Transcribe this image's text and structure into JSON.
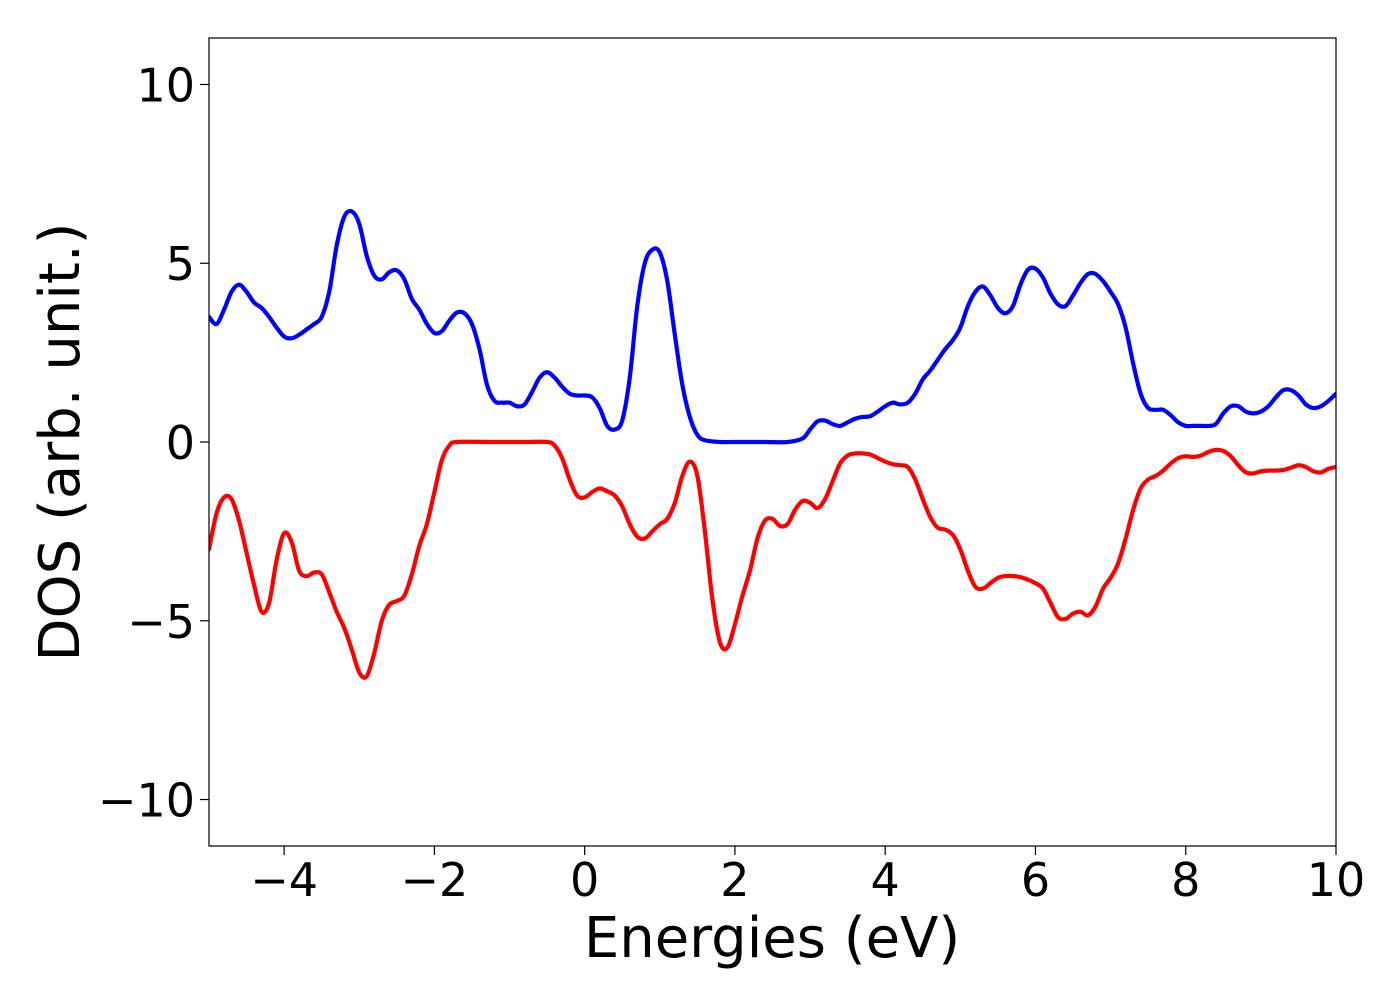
{
  "chart_data": {
    "type": "line",
    "title": "",
    "xlabel": "Energies (eV)",
    "ylabel": "DOS (arb. unit.)",
    "xlim": [
      -5,
      10
    ],
    "ylim": [
      -11.3,
      11.3
    ],
    "xticks": [
      -4,
      -2,
      0,
      2,
      4,
      6,
      8,
      10
    ],
    "xtick_labels": [
      "−4",
      "−2",
      "0",
      "2",
      "4",
      "6",
      "8",
      "10"
    ],
    "yticks": [
      -10,
      -5,
      0,
      5,
      10
    ],
    "ytick_labels": [
      "−10",
      "−5",
      "0",
      "5",
      "10"
    ],
    "grid": false,
    "legend": null,
    "series": [
      {
        "color": "#0000ff",
        "points": [
          [
            -5.0,
            3.5
          ],
          [
            -4.9,
            3.3
          ],
          [
            -4.8,
            3.7
          ],
          [
            -4.7,
            4.2
          ],
          [
            -4.6,
            4.4
          ],
          [
            -4.5,
            4.2
          ],
          [
            -4.4,
            3.9
          ],
          [
            -4.3,
            3.75
          ],
          [
            -4.2,
            3.5
          ],
          [
            -4.1,
            3.2
          ],
          [
            -4.0,
            2.95
          ],
          [
            -3.9,
            2.9
          ],
          [
            -3.8,
            3.0
          ],
          [
            -3.7,
            3.15
          ],
          [
            -3.6,
            3.3
          ],
          [
            -3.5,
            3.5
          ],
          [
            -3.4,
            4.2
          ],
          [
            -3.3,
            5.5
          ],
          [
            -3.2,
            6.3
          ],
          [
            -3.1,
            6.45
          ],
          [
            -3.0,
            6.1
          ],
          [
            -2.9,
            5.2
          ],
          [
            -2.8,
            4.65
          ],
          [
            -2.7,
            4.55
          ],
          [
            -2.6,
            4.75
          ],
          [
            -2.5,
            4.8
          ],
          [
            -2.4,
            4.55
          ],
          [
            -2.3,
            4.0
          ],
          [
            -2.2,
            3.7
          ],
          [
            -2.1,
            3.3
          ],
          [
            -2.0,
            3.05
          ],
          [
            -1.9,
            3.1
          ],
          [
            -1.8,
            3.4
          ],
          [
            -1.7,
            3.62
          ],
          [
            -1.6,
            3.6
          ],
          [
            -1.5,
            3.3
          ],
          [
            -1.4,
            2.6
          ],
          [
            -1.3,
            1.6
          ],
          [
            -1.2,
            1.15
          ],
          [
            -1.1,
            1.1
          ],
          [
            -1.0,
            1.1
          ],
          [
            -0.9,
            1.0
          ],
          [
            -0.8,
            1.05
          ],
          [
            -0.7,
            1.4
          ],
          [
            -0.6,
            1.8
          ],
          [
            -0.5,
            1.95
          ],
          [
            -0.4,
            1.8
          ],
          [
            -0.3,
            1.55
          ],
          [
            -0.2,
            1.35
          ],
          [
            -0.1,
            1.3
          ],
          [
            0.0,
            1.3
          ],
          [
            0.1,
            1.25
          ],
          [
            0.2,
            0.95
          ],
          [
            0.3,
            0.45
          ],
          [
            0.4,
            0.35
          ],
          [
            0.5,
            0.6
          ],
          [
            0.6,
            1.8
          ],
          [
            0.7,
            3.8
          ],
          [
            0.8,
            5.0
          ],
          [
            0.9,
            5.38
          ],
          [
            1.0,
            5.3
          ],
          [
            1.1,
            4.5
          ],
          [
            1.2,
            3.0
          ],
          [
            1.3,
            1.6
          ],
          [
            1.4,
            0.7
          ],
          [
            1.5,
            0.2
          ],
          [
            1.6,
            0.05
          ],
          [
            1.8,
            0.0
          ],
          [
            2.0,
            0.0
          ],
          [
            2.4,
            0.0
          ],
          [
            2.7,
            0.0
          ],
          [
            2.9,
            0.1
          ],
          [
            3.0,
            0.35
          ],
          [
            3.1,
            0.58
          ],
          [
            3.2,
            0.6
          ],
          [
            3.3,
            0.5
          ],
          [
            3.4,
            0.45
          ],
          [
            3.5,
            0.55
          ],
          [
            3.6,
            0.65
          ],
          [
            3.7,
            0.7
          ],
          [
            3.8,
            0.72
          ],
          [
            3.9,
            0.85
          ],
          [
            4.0,
            1.0
          ],
          [
            4.1,
            1.1
          ],
          [
            4.2,
            1.05
          ],
          [
            4.3,
            1.1
          ],
          [
            4.4,
            1.35
          ],
          [
            4.5,
            1.75
          ],
          [
            4.6,
            2.0
          ],
          [
            4.7,
            2.3
          ],
          [
            4.8,
            2.6
          ],
          [
            4.9,
            2.85
          ],
          [
            5.0,
            3.2
          ],
          [
            5.1,
            3.8
          ],
          [
            5.2,
            4.2
          ],
          [
            5.3,
            4.35
          ],
          [
            5.4,
            4.1
          ],
          [
            5.5,
            3.75
          ],
          [
            5.6,
            3.6
          ],
          [
            5.7,
            3.8
          ],
          [
            5.8,
            4.4
          ],
          [
            5.9,
            4.82
          ],
          [
            6.0,
            4.85
          ],
          [
            6.1,
            4.6
          ],
          [
            6.2,
            4.15
          ],
          [
            6.3,
            3.85
          ],
          [
            6.4,
            3.8
          ],
          [
            6.5,
            4.1
          ],
          [
            6.6,
            4.45
          ],
          [
            6.7,
            4.7
          ],
          [
            6.8,
            4.7
          ],
          [
            6.9,
            4.5
          ],
          [
            7.0,
            4.2
          ],
          [
            7.1,
            3.85
          ],
          [
            7.2,
            3.2
          ],
          [
            7.3,
            2.2
          ],
          [
            7.4,
            1.35
          ],
          [
            7.5,
            0.95
          ],
          [
            7.6,
            0.9
          ],
          [
            7.7,
            0.9
          ],
          [
            7.8,
            0.75
          ],
          [
            7.9,
            0.55
          ],
          [
            8.0,
            0.45
          ],
          [
            8.1,
            0.45
          ],
          [
            8.2,
            0.45
          ],
          [
            8.3,
            0.45
          ],
          [
            8.4,
            0.5
          ],
          [
            8.5,
            0.8
          ],
          [
            8.6,
            1.0
          ],
          [
            8.7,
            1.0
          ],
          [
            8.8,
            0.85
          ],
          [
            8.9,
            0.8
          ],
          [
            9.0,
            0.85
          ],
          [
            9.1,
            1.0
          ],
          [
            9.2,
            1.25
          ],
          [
            9.3,
            1.45
          ],
          [
            9.4,
            1.45
          ],
          [
            9.5,
            1.3
          ],
          [
            9.6,
            1.05
          ],
          [
            9.7,
            0.95
          ],
          [
            9.8,
            1.0
          ],
          [
            9.9,
            1.15
          ],
          [
            10.0,
            1.35
          ]
        ]
      },
      {
        "color": "#ff0000",
        "points": [
          [
            -5.0,
            -3.0
          ],
          [
            -4.9,
            -2.0
          ],
          [
            -4.8,
            -1.55
          ],
          [
            -4.7,
            -1.6
          ],
          [
            -4.6,
            -2.2
          ],
          [
            -4.5,
            -3.1
          ],
          [
            -4.4,
            -4.0
          ],
          [
            -4.3,
            -4.75
          ],
          [
            -4.2,
            -4.5
          ],
          [
            -4.1,
            -3.3
          ],
          [
            -4.0,
            -2.55
          ],
          [
            -3.9,
            -2.8
          ],
          [
            -3.8,
            -3.6
          ],
          [
            -3.7,
            -3.75
          ],
          [
            -3.6,
            -3.65
          ],
          [
            -3.5,
            -3.7
          ],
          [
            -3.4,
            -4.2
          ],
          [
            -3.3,
            -4.75
          ],
          [
            -3.2,
            -5.2
          ],
          [
            -3.1,
            -5.8
          ],
          [
            -3.0,
            -6.45
          ],
          [
            -2.9,
            -6.55
          ],
          [
            -2.8,
            -5.9
          ],
          [
            -2.7,
            -5.0
          ],
          [
            -2.6,
            -4.55
          ],
          [
            -2.5,
            -4.45
          ],
          [
            -2.4,
            -4.3
          ],
          [
            -2.3,
            -3.7
          ],
          [
            -2.2,
            -2.9
          ],
          [
            -2.1,
            -2.3
          ],
          [
            -2.0,
            -1.4
          ],
          [
            -1.9,
            -0.5
          ],
          [
            -1.8,
            -0.1
          ],
          [
            -1.7,
            0.0
          ],
          [
            -1.2,
            0.0
          ],
          [
            -0.8,
            0.0
          ],
          [
            -0.5,
            0.0
          ],
          [
            -0.4,
            -0.1
          ],
          [
            -0.3,
            -0.45
          ],
          [
            -0.2,
            -1.05
          ],
          [
            -0.1,
            -1.5
          ],
          [
            0.0,
            -1.55
          ],
          [
            0.1,
            -1.4
          ],
          [
            0.2,
            -1.3
          ],
          [
            0.3,
            -1.38
          ],
          [
            0.4,
            -1.5
          ],
          [
            0.5,
            -1.8
          ],
          [
            0.6,
            -2.3
          ],
          [
            0.7,
            -2.65
          ],
          [
            0.8,
            -2.7
          ],
          [
            0.9,
            -2.5
          ],
          [
            1.0,
            -2.3
          ],
          [
            1.1,
            -2.15
          ],
          [
            1.2,
            -1.7
          ],
          [
            1.3,
            -0.95
          ],
          [
            1.4,
            -0.55
          ],
          [
            1.5,
            -0.95
          ],
          [
            1.6,
            -2.5
          ],
          [
            1.7,
            -4.4
          ],
          [
            1.8,
            -5.6
          ],
          [
            1.9,
            -5.75
          ],
          [
            2.0,
            -5.1
          ],
          [
            2.1,
            -4.3
          ],
          [
            2.2,
            -3.6
          ],
          [
            2.3,
            -2.7
          ],
          [
            2.4,
            -2.2
          ],
          [
            2.5,
            -2.15
          ],
          [
            2.6,
            -2.35
          ],
          [
            2.7,
            -2.3
          ],
          [
            2.8,
            -1.9
          ],
          [
            2.9,
            -1.65
          ],
          [
            3.0,
            -1.7
          ],
          [
            3.1,
            -1.85
          ],
          [
            3.2,
            -1.6
          ],
          [
            3.3,
            -1.1
          ],
          [
            3.4,
            -0.6
          ],
          [
            3.5,
            -0.38
          ],
          [
            3.6,
            -0.32
          ],
          [
            3.7,
            -0.32
          ],
          [
            3.8,
            -0.35
          ],
          [
            3.9,
            -0.45
          ],
          [
            4.0,
            -0.55
          ],
          [
            4.1,
            -0.62
          ],
          [
            4.2,
            -0.65
          ],
          [
            4.3,
            -0.7
          ],
          [
            4.4,
            -1.05
          ],
          [
            4.5,
            -1.6
          ],
          [
            4.6,
            -2.1
          ],
          [
            4.7,
            -2.4
          ],
          [
            4.8,
            -2.45
          ],
          [
            4.9,
            -2.6
          ],
          [
            5.0,
            -3.0
          ],
          [
            5.1,
            -3.6
          ],
          [
            5.2,
            -4.05
          ],
          [
            5.3,
            -4.1
          ],
          [
            5.4,
            -3.95
          ],
          [
            5.5,
            -3.8
          ],
          [
            5.6,
            -3.75
          ],
          [
            5.7,
            -3.75
          ],
          [
            5.8,
            -3.78
          ],
          [
            5.9,
            -3.85
          ],
          [
            6.0,
            -3.95
          ],
          [
            6.1,
            -4.1
          ],
          [
            6.2,
            -4.5
          ],
          [
            6.3,
            -4.9
          ],
          [
            6.4,
            -4.95
          ],
          [
            6.5,
            -4.8
          ],
          [
            6.6,
            -4.75
          ],
          [
            6.7,
            -4.85
          ],
          [
            6.8,
            -4.6
          ],
          [
            6.9,
            -4.1
          ],
          [
            7.0,
            -3.8
          ],
          [
            7.1,
            -3.4
          ],
          [
            7.2,
            -2.7
          ],
          [
            7.3,
            -1.9
          ],
          [
            7.4,
            -1.3
          ],
          [
            7.5,
            -1.05
          ],
          [
            7.6,
            -0.95
          ],
          [
            7.7,
            -0.8
          ],
          [
            7.8,
            -0.6
          ],
          [
            7.9,
            -0.45
          ],
          [
            8.0,
            -0.4
          ],
          [
            8.1,
            -0.42
          ],
          [
            8.2,
            -0.38
          ],
          [
            8.3,
            -0.28
          ],
          [
            8.4,
            -0.22
          ],
          [
            8.5,
            -0.25
          ],
          [
            8.6,
            -0.4
          ],
          [
            8.7,
            -0.65
          ],
          [
            8.8,
            -0.85
          ],
          [
            8.9,
            -0.88
          ],
          [
            9.0,
            -0.82
          ],
          [
            9.1,
            -0.8
          ],
          [
            9.2,
            -0.8
          ],
          [
            9.3,
            -0.78
          ],
          [
            9.4,
            -0.72
          ],
          [
            9.5,
            -0.65
          ],
          [
            9.6,
            -0.7
          ],
          [
            9.7,
            -0.82
          ],
          [
            9.8,
            -0.85
          ],
          [
            9.9,
            -0.75
          ],
          [
            10.0,
            -0.7
          ]
        ]
      }
    ]
  }
}
